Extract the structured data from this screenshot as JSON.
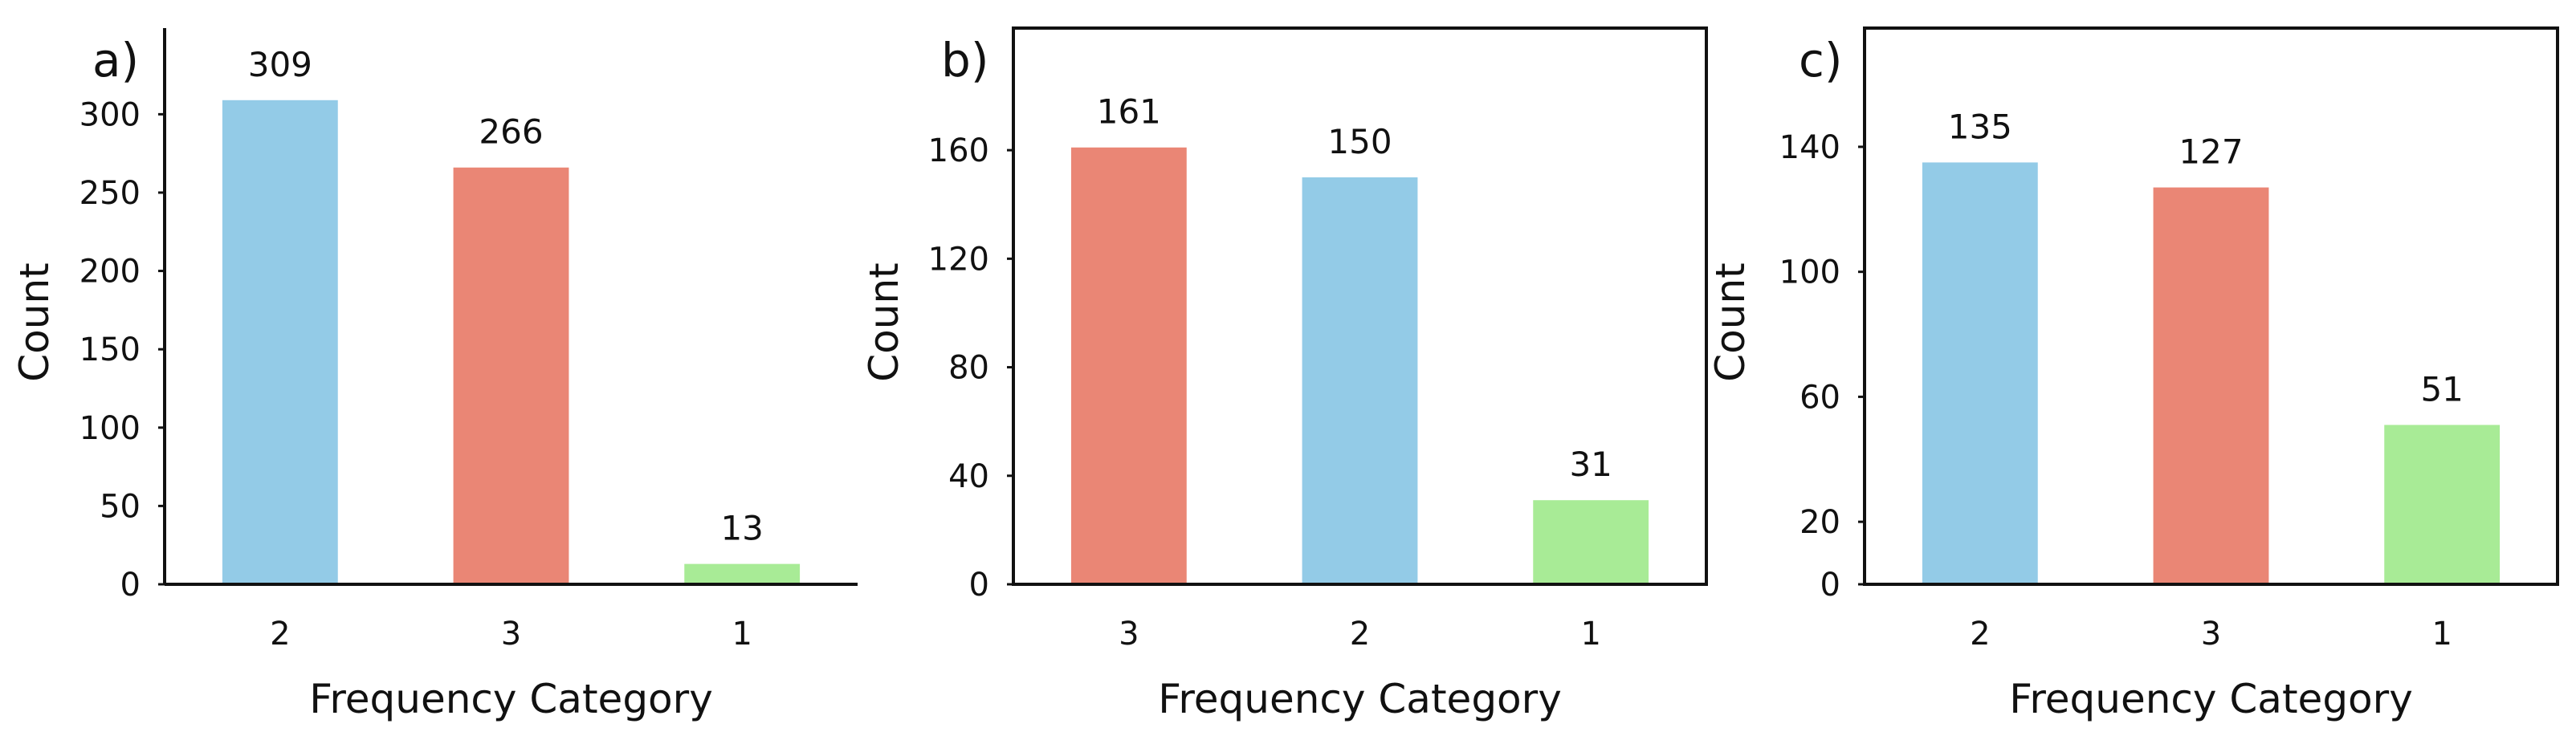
{
  "chart_data": [
    {
      "type": "bar",
      "panel_label": "a)",
      "categories": [
        "2",
        "3",
        "1"
      ],
      "values": [
        309,
        266,
        13
      ],
      "colors": [
        "#93cbe7",
        "#ea8675",
        "#a8eb96"
      ],
      "data_labels": [
        "309",
        "266",
        "13"
      ],
      "xlabel": "Frequency Category",
      "ylabel": "Count",
      "yticks": [
        0,
        50,
        100,
        150,
        200,
        250,
        300
      ],
      "ylim": [
        0,
        355
      ],
      "box": "left-bottom"
    },
    {
      "type": "bar",
      "panel_label": "b)",
      "categories": [
        "3",
        "2",
        "1"
      ],
      "values": [
        161,
        150,
        31
      ],
      "colors": [
        "#ea8675",
        "#93cbe7",
        "#a8eb96"
      ],
      "data_labels": [
        "161",
        "150",
        "31"
      ],
      "xlabel": "Frequency Category",
      "ylabel": "Count",
      "yticks": [
        0,
        40,
        80,
        120,
        160
      ],
      "ylim": [
        0,
        205
      ],
      "box": "full"
    },
    {
      "type": "bar",
      "panel_label": "c)",
      "categories": [
        "2",
        "3",
        "1"
      ],
      "values": [
        135,
        127,
        51
      ],
      "colors": [
        "#93cbe7",
        "#ea8675",
        "#a8eb96"
      ],
      "data_labels": [
        "135",
        "127",
        "51"
      ],
      "xlabel": "Frequency Category",
      "ylabel": "Count",
      "yticks": [
        0,
        20,
        60,
        100,
        140
      ],
      "ylim": [
        0,
        178
      ],
      "box": "full"
    }
  ]
}
